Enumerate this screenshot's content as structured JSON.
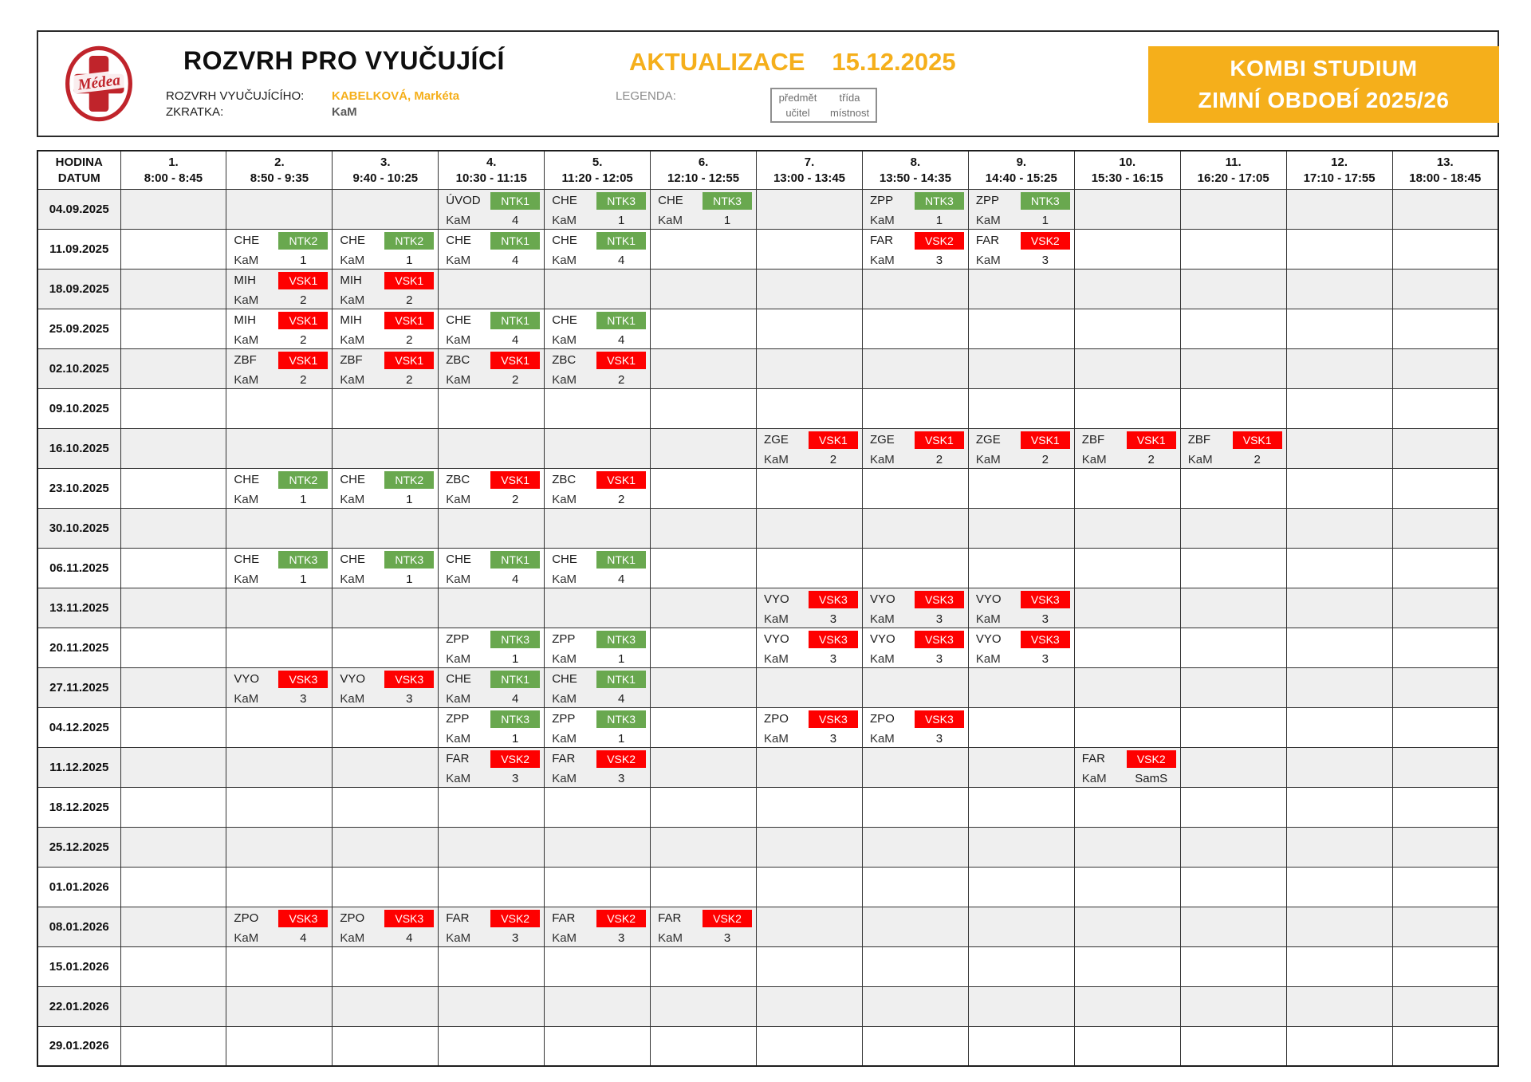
{
  "header": {
    "logo_text": "Médea",
    "title": "ROZVRH PRO VYUČUJÍCÍ",
    "update_label": "AKTUALIZACE",
    "update_date": "15.12.2025",
    "teacher_label": "ROZVRH VYUČUJÍCÍHO:",
    "teacher_name": "KABELKOVÁ, Markéta",
    "abbr_label": "ZKRATKA:",
    "abbr_value": "KaM",
    "legend_label": "LEGENDA:",
    "legend_box": {
      "top_left": "předmět",
      "top_right": "třída",
      "bottom_left": "učitel",
      "bottom_right": "místnost"
    },
    "program_line1": "KOMBI STUDIUM",
    "program_line2": "ZIMNÍ OBDOBÍ 2025/26"
  },
  "table": {
    "corner": {
      "line1": "HODINA",
      "line2": "DATUM"
    },
    "periods": [
      {
        "num": "1.",
        "time": "8:00 - 8:45"
      },
      {
        "num": "2.",
        "time": "8:50 - 9:35"
      },
      {
        "num": "3.",
        "time": "9:40 - 10:25"
      },
      {
        "num": "4.",
        "time": "10:30 - 11:15"
      },
      {
        "num": "5.",
        "time": "11:20 - 12:05"
      },
      {
        "num": "6.",
        "time": "12:10 - 12:55"
      },
      {
        "num": "7.",
        "time": "13:00 - 13:45"
      },
      {
        "num": "8.",
        "time": "13:50 - 14:35"
      },
      {
        "num": "9.",
        "time": "14:40 - 15:25"
      },
      {
        "num": "10.",
        "time": "15:30 - 16:15"
      },
      {
        "num": "11.",
        "time": "16:20 - 17:05"
      },
      {
        "num": "12.",
        "time": "17:10 - 17:55"
      },
      {
        "num": "13.",
        "time": "18:00 - 18:45"
      }
    ],
    "rows": [
      {
        "date": "04.09.2025",
        "shade": "gray",
        "cells": {
          "4": {
            "s": "ÚVOD",
            "c": "NTK1",
            "cc": "green",
            "t": "KaM",
            "r": "4"
          },
          "5": {
            "s": "CHE",
            "c": "NTK3",
            "cc": "green",
            "t": "KaM",
            "r": "1"
          },
          "6": {
            "s": "CHE",
            "c": "NTK3",
            "cc": "green",
            "t": "KaM",
            "r": "1"
          },
          "8": {
            "s": "ZPP",
            "c": "NTK3",
            "cc": "green",
            "t": "KaM",
            "r": "1"
          },
          "9": {
            "s": "ZPP",
            "c": "NTK3",
            "cc": "green",
            "t": "KaM",
            "r": "1"
          }
        }
      },
      {
        "date": "11.09.2025",
        "shade": "white",
        "cells": {
          "2": {
            "s": "CHE",
            "c": "NTK2",
            "cc": "green",
            "t": "KaM",
            "r": "1"
          },
          "3": {
            "s": "CHE",
            "c": "NTK2",
            "cc": "green",
            "t": "KaM",
            "r": "1"
          },
          "4": {
            "s": "CHE",
            "c": "NTK1",
            "cc": "green",
            "t": "KaM",
            "r": "4"
          },
          "5": {
            "s": "CHE",
            "c": "NTK1",
            "cc": "green",
            "t": "KaM",
            "r": "4"
          },
          "8": {
            "s": "FAR",
            "c": "VSK2",
            "cc": "red",
            "t": "KaM",
            "r": "3"
          },
          "9": {
            "s": "FAR",
            "c": "VSK2",
            "cc": "red",
            "t": "KaM",
            "r": "3"
          }
        }
      },
      {
        "date": "18.09.2025",
        "shade": "gray",
        "cells": {
          "2": {
            "s": "MIH",
            "c": "VSK1",
            "cc": "red",
            "t": "KaM",
            "r": "2"
          },
          "3": {
            "s": "MIH",
            "c": "VSK1",
            "cc": "red",
            "t": "KaM",
            "r": "2"
          }
        }
      },
      {
        "date": "25.09.2025",
        "shade": "white",
        "cells": {
          "2": {
            "s": "MIH",
            "c": "VSK1",
            "cc": "red",
            "t": "KaM",
            "r": "2"
          },
          "3": {
            "s": "MIH",
            "c": "VSK1",
            "cc": "red",
            "t": "KaM",
            "r": "2"
          },
          "4": {
            "s": "CHE",
            "c": "NTK1",
            "cc": "green",
            "t": "KaM",
            "r": "4"
          },
          "5": {
            "s": "CHE",
            "c": "NTK1",
            "cc": "green",
            "t": "KaM",
            "r": "4"
          }
        }
      },
      {
        "date": "02.10.2025",
        "shade": "gray",
        "cells": {
          "2": {
            "s": "ZBF",
            "c": "VSK1",
            "cc": "red",
            "t": "KaM",
            "r": "2"
          },
          "3": {
            "s": "ZBF",
            "c": "VSK1",
            "cc": "red",
            "t": "KaM",
            "r": "2"
          },
          "4": {
            "s": "ZBC",
            "c": "VSK1",
            "cc": "red",
            "t": "KaM",
            "r": "2"
          },
          "5": {
            "s": "ZBC",
            "c": "VSK1",
            "cc": "red",
            "t": "KaM",
            "r": "2"
          }
        }
      },
      {
        "date": "09.10.2025",
        "shade": "white",
        "cells": {}
      },
      {
        "date": "16.10.2025",
        "shade": "gray",
        "cells": {
          "7": {
            "s": "ZGE",
            "c": "VSK1",
            "cc": "red",
            "t": "KaM",
            "r": "2"
          },
          "8": {
            "s": "ZGE",
            "c": "VSK1",
            "cc": "red",
            "t": "KaM",
            "r": "2"
          },
          "9": {
            "s": "ZGE",
            "c": "VSK1",
            "cc": "red",
            "t": "KaM",
            "r": "2"
          },
          "10": {
            "s": "ZBF",
            "c": "VSK1",
            "cc": "red",
            "t": "KaM",
            "r": "2"
          },
          "11": {
            "s": "ZBF",
            "c": "VSK1",
            "cc": "red",
            "t": "KaM",
            "r": "2"
          }
        }
      },
      {
        "date": "23.10.2025",
        "shade": "white",
        "cells": {
          "2": {
            "s": "CHE",
            "c": "NTK2",
            "cc": "green",
            "t": "KaM",
            "r": "1"
          },
          "3": {
            "s": "CHE",
            "c": "NTK2",
            "cc": "green",
            "t": "KaM",
            "r": "1"
          },
          "4": {
            "s": "ZBC",
            "c": "VSK1",
            "cc": "red",
            "t": "KaM",
            "r": "2"
          },
          "5": {
            "s": "ZBC",
            "c": "VSK1",
            "cc": "red",
            "t": "KaM",
            "r": "2"
          }
        }
      },
      {
        "date": "30.10.2025",
        "shade": "gray",
        "cells": {}
      },
      {
        "date": "06.11.2025",
        "shade": "white",
        "cells": {
          "2": {
            "s": "CHE",
            "c": "NTK3",
            "cc": "green",
            "t": "KaM",
            "r": "1"
          },
          "3": {
            "s": "CHE",
            "c": "NTK3",
            "cc": "green",
            "t": "KaM",
            "r": "1"
          },
          "4": {
            "s": "CHE",
            "c": "NTK1",
            "cc": "green",
            "t": "KaM",
            "r": "4"
          },
          "5": {
            "s": "CHE",
            "c": "NTK1",
            "cc": "green",
            "t": "KaM",
            "r": "4"
          }
        }
      },
      {
        "date": "13.11.2025",
        "shade": "gray",
        "cells": {
          "7": {
            "s": "VYO",
            "c": "VSK3",
            "cc": "red",
            "t": "KaM",
            "r": "3"
          },
          "8": {
            "s": "VYO",
            "c": "VSK3",
            "cc": "red",
            "t": "KaM",
            "r": "3"
          },
          "9": {
            "s": "VYO",
            "c": "VSK3",
            "cc": "red",
            "t": "KaM",
            "r": "3"
          }
        }
      },
      {
        "date": "20.11.2025",
        "shade": "white",
        "cells": {
          "4": {
            "s": "ZPP",
            "c": "NTK3",
            "cc": "green",
            "t": "KaM",
            "r": "1"
          },
          "5": {
            "s": "ZPP",
            "c": "NTK3",
            "cc": "green",
            "t": "KaM",
            "r": "1"
          },
          "7": {
            "s": "VYO",
            "c": "VSK3",
            "cc": "red",
            "t": "KaM",
            "r": "3"
          },
          "8": {
            "s": "VYO",
            "c": "VSK3",
            "cc": "red",
            "t": "KaM",
            "r": "3"
          },
          "9": {
            "s": "VYO",
            "c": "VSK3",
            "cc": "red",
            "t": "KaM",
            "r": "3"
          }
        }
      },
      {
        "date": "27.11.2025",
        "shade": "gray",
        "cells": {
          "2": {
            "s": "VYO",
            "c": "VSK3",
            "cc": "red",
            "t": "KaM",
            "r": "3"
          },
          "3": {
            "s": "VYO",
            "c": "VSK3",
            "cc": "red",
            "t": "KaM",
            "r": "3"
          },
          "4": {
            "s": "CHE",
            "c": "NTK1",
            "cc": "green",
            "t": "KaM",
            "r": "4"
          },
          "5": {
            "s": "CHE",
            "c": "NTK1",
            "cc": "green",
            "t": "KaM",
            "r": "4"
          }
        }
      },
      {
        "date": "04.12.2025",
        "shade": "white",
        "cells": {
          "4": {
            "s": "ZPP",
            "c": "NTK3",
            "cc": "green",
            "t": "KaM",
            "r": "1"
          },
          "5": {
            "s": "ZPP",
            "c": "NTK3",
            "cc": "green",
            "t": "KaM",
            "r": "1"
          },
          "7": {
            "s": "ZPO",
            "c": "VSK3",
            "cc": "red",
            "t": "KaM",
            "r": "3"
          },
          "8": {
            "s": "ZPO",
            "c": "VSK3",
            "cc": "red",
            "t": "KaM",
            "r": "3"
          }
        }
      },
      {
        "date": "11.12.2025",
        "shade": "gray",
        "cells": {
          "4": {
            "s": "FAR",
            "c": "VSK2",
            "cc": "red",
            "t": "KaM",
            "r": "3"
          },
          "5": {
            "s": "FAR",
            "c": "VSK2",
            "cc": "red",
            "t": "KaM",
            "r": "3"
          },
          "10": {
            "s": "FAR",
            "c": "VSK2",
            "cc": "red",
            "t": "KaM",
            "r": "SamS"
          }
        }
      },
      {
        "date": "18.12.2025",
        "shade": "white",
        "cells": {}
      },
      {
        "date": "25.12.2025",
        "shade": "gray",
        "cells": {}
      },
      {
        "date": "01.01.2026",
        "shade": "white",
        "cells": {}
      },
      {
        "date": "08.01.2026",
        "shade": "gray",
        "cells": {
          "2": {
            "s": "ZPO",
            "c": "VSK3",
            "cc": "red",
            "t": "KaM",
            "r": "4"
          },
          "3": {
            "s": "ZPO",
            "c": "VSK3",
            "cc": "red",
            "t": "KaM",
            "r": "4"
          },
          "4": {
            "s": "FAR",
            "c": "VSK2",
            "cc": "red",
            "t": "KaM",
            "r": "3"
          },
          "5": {
            "s": "FAR",
            "c": "VSK2",
            "cc": "red",
            "t": "KaM",
            "r": "3"
          },
          "6": {
            "s": "FAR",
            "c": "VSK2",
            "cc": "red",
            "t": "KaM",
            "r": "3"
          }
        }
      },
      {
        "date": "15.01.2026",
        "shade": "white",
        "cells": {}
      },
      {
        "date": "22.01.2026",
        "shade": "gray",
        "cells": {}
      },
      {
        "date": "29.01.2026",
        "shade": "white",
        "cells": {}
      }
    ]
  },
  "colors": {
    "amber": "#F5AF1B",
    "green": "#69A84F",
    "red": "#FE0000",
    "row-shade": "#EFEFEF",
    "logo-red": "#C0242B"
  }
}
